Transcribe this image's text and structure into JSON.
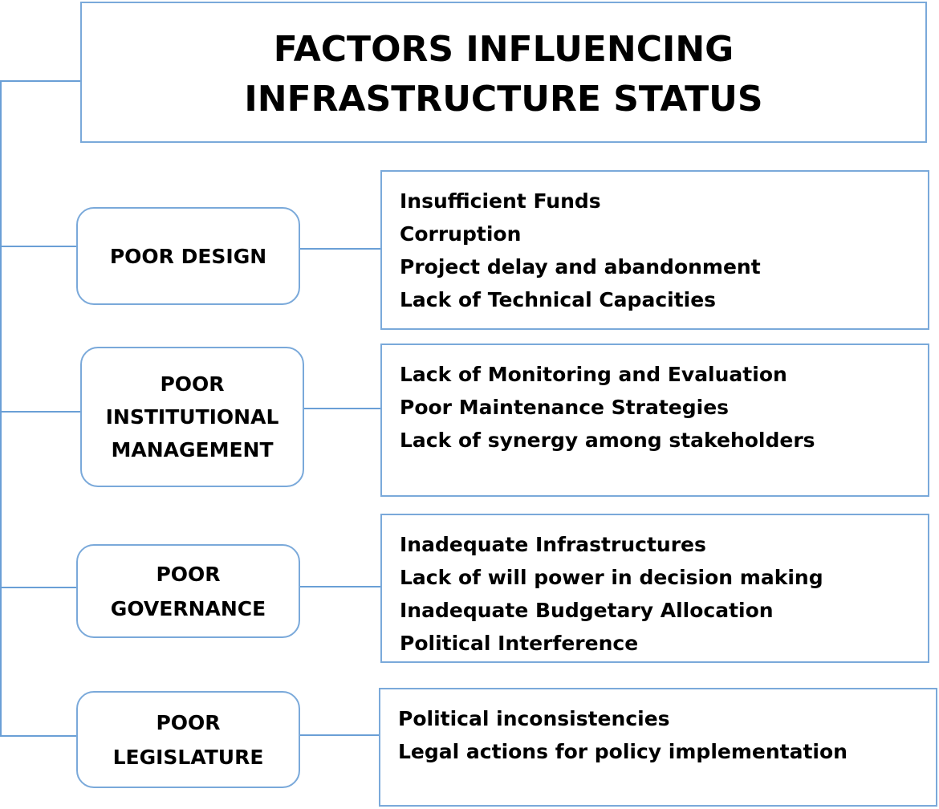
{
  "title": "FACTORS INFLUENCING INFRASTRUCTURE STATUS",
  "factors": [
    {
      "label": "POOR DESIGN",
      "items": [
        "Insufficient Funds",
        "Corruption",
        "Project delay and abandonment",
        "Lack of Technical Capacities"
      ]
    },
    {
      "label": "POOR INSTITUTIONAL MANAGEMENT",
      "items": [
        "Lack of Monitoring and Evaluation",
        "Poor Maintenance Strategies",
        "Lack of synergy among stakeholders"
      ]
    },
    {
      "label": "POOR GOVERNANCE",
      "items": [
        "Inadequate Infrastructures",
        "Lack of will power in decision making",
        "Inadequate Budgetary Allocation",
        "Political Interference"
      ]
    },
    {
      "label": "POOR LEGISLATURE",
      "items": [
        "Political inconsistencies",
        "Legal actions for policy implementation"
      ]
    }
  ],
  "colors": {
    "border": "#7aa9da",
    "connector": "#6a9fd6",
    "text": "#000000"
  }
}
